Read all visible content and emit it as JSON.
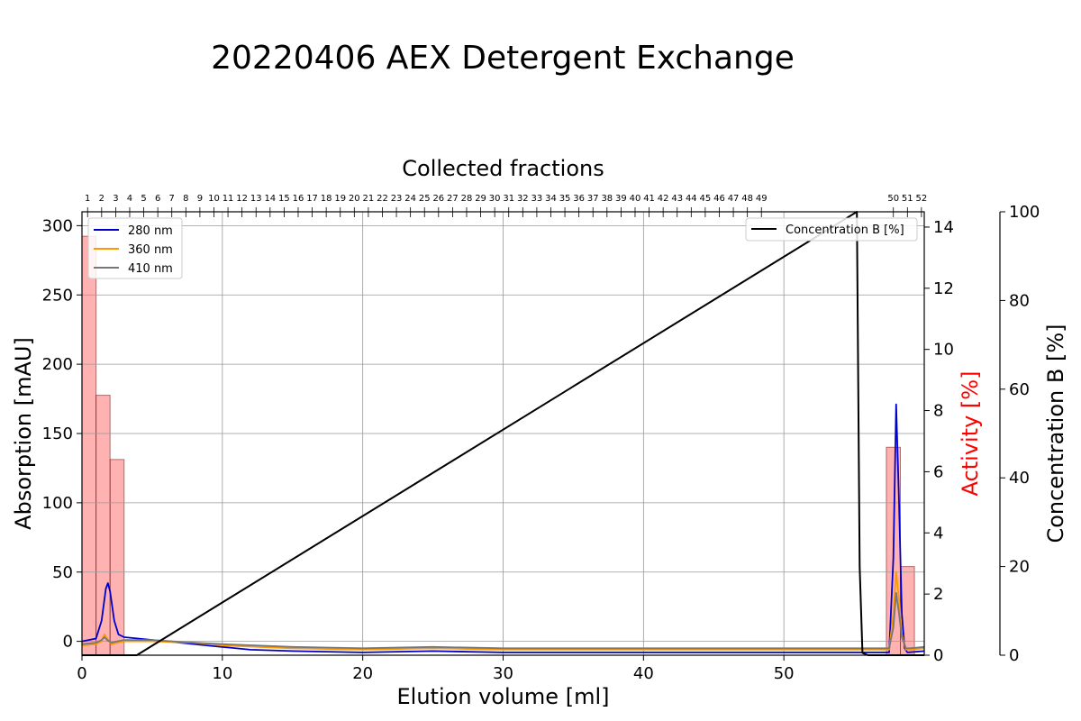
{
  "title": "20220406 AEX Detergent Exchange",
  "chart_data": {
    "type": "line",
    "subtitle": "Collected fractions",
    "xlabel": "Elution volume [ml]",
    "ylabel": "Absorption [mAU]",
    "y2label": "Activity [%]",
    "y3label": "Concentration B [%]",
    "xlim": [
      0,
      60
    ],
    "ylim": [
      -10,
      310
    ],
    "y2lim": [
      0,
      14.5
    ],
    "y3lim": [
      0,
      100
    ],
    "grid": true,
    "x_ticks": [
      0,
      10,
      20,
      30,
      40,
      50
    ],
    "y_ticks": [
      0,
      50,
      100,
      150,
      200,
      250,
      300
    ],
    "y2_ticks": [
      0,
      2,
      4,
      6,
      8,
      10,
      12,
      14
    ],
    "y3_ticks": [
      0,
      20,
      40,
      60,
      80,
      100
    ],
    "fractions": {
      "labels": [
        "1",
        "2",
        "3",
        "4",
        "5",
        "6",
        "7",
        "8",
        "9",
        "10",
        "11",
        "12",
        "13",
        "14",
        "15",
        "16",
        "17",
        "18",
        "19",
        "20",
        "21",
        "22",
        "23",
        "24",
        "25",
        "26",
        "27",
        "28",
        "29",
        "30",
        "31",
        "32",
        "33",
        "34",
        "35",
        "36",
        "37",
        "38",
        "39",
        "40",
        "41",
        "42",
        "43",
        "44",
        "45",
        "46",
        "47",
        "48",
        "49",
        "50",
        "51",
        "52"
      ],
      "positions": [
        0.4,
        1.4,
        2.4,
        3.4,
        4.4,
        5.4,
        6.4,
        7.4,
        8.4,
        9.4,
        10.4,
        11.4,
        12.4,
        13.4,
        14.4,
        15.4,
        16.4,
        17.4,
        18.4,
        19.4,
        20.4,
        21.4,
        22.4,
        23.4,
        24.4,
        25.4,
        26.4,
        27.4,
        28.4,
        29.4,
        30.4,
        31.4,
        32.4,
        33.4,
        34.4,
        35.4,
        36.4,
        37.4,
        38.4,
        39.4,
        40.4,
        41.4,
        42.4,
        43.4,
        44.4,
        45.4,
        46.4,
        47.4,
        48.4,
        57.8,
        58.8,
        59.8
      ]
    },
    "activity_bars": [
      {
        "x0": 0.0,
        "x1": 1.0,
        "value": 13.7
      },
      {
        "x0": 1.0,
        "x1": 2.0,
        "value": 8.5
      },
      {
        "x0": 2.0,
        "x1": 3.0,
        "value": 6.4
      },
      {
        "x0": 57.3,
        "x1": 58.3,
        "value": 6.8
      },
      {
        "x0": 58.3,
        "x1": 59.3,
        "value": 2.9
      }
    ],
    "legend_left": {
      "placement": "top-left",
      "entries": [
        "280 nm",
        "360 nm",
        "410 nm"
      ]
    },
    "legend_right": {
      "placement": "top-right",
      "entries": [
        "Concentration B [%]"
      ]
    },
    "series": [
      {
        "name": "280 nm",
        "color": "#0000cc",
        "x": [
          0,
          1,
          1.4,
          1.7,
          1.85,
          2.0,
          2.3,
          2.6,
          3,
          4,
          6,
          8,
          10,
          12,
          15,
          20,
          25,
          30,
          40,
          50,
          56,
          57.5,
          57.8,
          58,
          58.2,
          58.4,
          58.6,
          58.8,
          60
        ],
        "y": [
          0,
          2,
          15,
          38,
          42,
          36,
          15,
          5,
          3,
          2,
          0,
          -2,
          -4,
          -6,
          -7,
          -8,
          -7,
          -8,
          -8,
          -8,
          -8,
          -8,
          60,
          171,
          100,
          20,
          -5,
          -8,
          -7
        ]
      },
      {
        "name": "360 nm",
        "color": "#ff9900",
        "x": [
          0,
          1,
          1.4,
          1.6,
          1.8,
          2.1,
          2.5,
          3,
          5,
          8,
          10,
          15,
          20,
          25,
          30,
          40,
          50,
          57.5,
          57.8,
          58,
          58.2,
          58.4,
          58.7,
          59,
          60
        ],
        "y": [
          -3,
          -2,
          0,
          5,
          2,
          -2,
          -1,
          0,
          0,
          -1,
          -3,
          -5,
          -6,
          -5,
          -6,
          -6,
          -6,
          -6,
          20,
          50,
          30,
          5,
          -6,
          -6,
          -5
        ]
      },
      {
        "name": "410 nm",
        "color": "#777777",
        "x": [
          0,
          1,
          1.4,
          1.6,
          1.8,
          2.1,
          2.5,
          3,
          5,
          8,
          10,
          15,
          20,
          25,
          30,
          40,
          50,
          57.5,
          57.8,
          58,
          58.2,
          58.4,
          58.7,
          59,
          60
        ],
        "y": [
          -2,
          -1,
          1,
          3,
          1,
          -1,
          0,
          1,
          1,
          -1,
          -2,
          -4,
          -5,
          -4,
          -5,
          -5,
          -5,
          -5,
          10,
          35,
          20,
          3,
          -5,
          -5,
          -4
        ]
      },
      {
        "name": "Concentration B [%]",
        "color": "#000000",
        "axis": "y3",
        "x": [
          0,
          3.9,
          55.2,
          55.4,
          55.6,
          56.0,
          60
        ],
        "y": [
          0,
          0,
          100,
          20,
          0.5,
          0,
          0
        ]
      }
    ]
  }
}
